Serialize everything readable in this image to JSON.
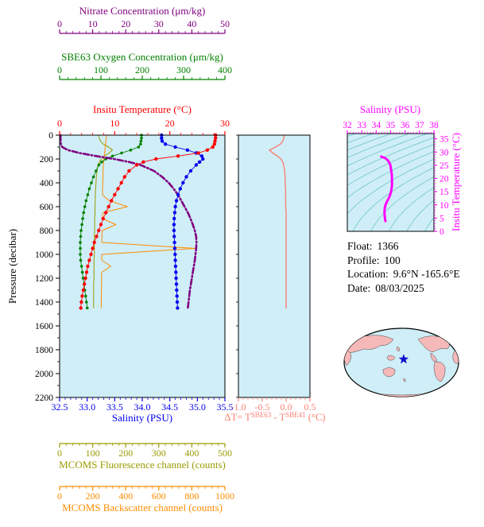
{
  "titles": {
    "nitrate": "Nitrate Concentration (μm/kg)",
    "oxygen": "SBE63 Oxygen Concentration (μm/kg)",
    "temperature": "Insitu Temperature (°C)",
    "pressure": "Pressure (decibar)",
    "salinity": "Salinity (PSU)",
    "fluorescence": "MCOMS Fluorescence channel (counts)",
    "backscatter": "MCOMS Backscatter channel (counts)",
    "dt_prefix": "ΔT= T",
    "dt_sup1": "SBE63",
    "dt_mid": " - T",
    "dt_sup2": "SBE41",
    "dt_suffix": " (°C)",
    "ts_x": "Salinity (PSU)",
    "ts_y": "Insitu Temperature (°C)"
  },
  "info": {
    "lines": [
      {
        "label": "Float:",
        "value": "1366"
      },
      {
        "label": "Profile:",
        "value": "100"
      },
      {
        "label": "Location:",
        "value": "9.6°N -165.6°E"
      },
      {
        "label": "Date:",
        "value": "08/03/2025"
      }
    ]
  },
  "colors": {
    "plot_bg": "#cfeef7",
    "contour": "#5fc0c0",
    "nitrate": "#800080",
    "oxygen": "#008000",
    "temperature": "#ff0000",
    "salinity": "#0000ee",
    "fluorescence": "#9a9a00",
    "backscatter": "#ff8c00",
    "delta_t": "#fa8072",
    "ts": "#ff00ff",
    "pressure": "#000000",
    "marker": "#1111cc",
    "land": "#f5b9b9",
    "ocean": "#cfeef7"
  },
  "chart_data": [
    {
      "id": "profile",
      "type": "line",
      "ylabel": "Pressure (decibar)",
      "ylim": [
        0,
        2200
      ],
      "yticks": [
        0,
        200,
        400,
        600,
        800,
        1000,
        1200,
        1400,
        1600,
        1800,
        2000,
        2200
      ],
      "ytick_labels": [
        "0",
        "200",
        "400",
        "600",
        "800",
        "1000",
        "1200",
        "1400",
        "1600",
        "1800",
        "2000",
        "2200"
      ],
      "y_minor_step": 100,
      "pressure": [
        0,
        25,
        50,
        75,
        100,
        125,
        150,
        175,
        200,
        225,
        250,
        300,
        350,
        400,
        450,
        500,
        550,
        600,
        650,
        700,
        750,
        800,
        850,
        900,
        950,
        1000,
        1050,
        1100,
        1150,
        1200,
        1250,
        1300,
        1350,
        1400,
        1450
      ],
      "axes": [
        {
          "name": "nitrate",
          "label": "Nitrate Concentration (μm/kg)",
          "color": "#800080",
          "lim": [
            0,
            50
          ],
          "ticks": [
            0,
            10,
            20,
            30,
            40,
            50
          ],
          "tick_labels": [
            "0",
            "10",
            "20",
            "30",
            "40",
            "50"
          ],
          "minor": 2,
          "position": "top-detached-1"
        },
        {
          "name": "oxygen",
          "label": "SBE63 Oxygen Concentration (μm/kg)",
          "color": "#008000",
          "lim": [
            0,
            400
          ],
          "ticks": [
            0,
            100,
            200,
            300,
            400
          ],
          "tick_labels": [
            "0",
            "100",
            "200",
            "300",
            "400"
          ],
          "minor": 20,
          "position": "top-detached-2"
        },
        {
          "name": "temperature",
          "label": "Insitu Temperature (°C)",
          "color": "#ff0000",
          "lim": [
            0,
            30
          ],
          "ticks": [
            0,
            10,
            20,
            30
          ],
          "tick_labels": [
            "0",
            "10",
            "20",
            "30"
          ],
          "minor": 2,
          "position": "top-edge"
        },
        {
          "name": "salinity",
          "label": "Salinity (PSU)",
          "color": "#0000ee",
          "lim": [
            32.5,
            35.5
          ],
          "ticks": [
            32.5,
            33,
            33.5,
            34,
            34.5,
            35,
            35.5
          ],
          "tick_labels": [
            "32.5",
            "33.0",
            "33.5",
            "34.0",
            "34.5",
            "35.0",
            "35.5"
          ],
          "minor": 0.1,
          "position": "bottom-edge"
        },
        {
          "name": "fluorescence",
          "label": "MCOMS Fluorescence channel (counts)",
          "color": "#9a9a00",
          "lim": [
            0,
            500
          ],
          "ticks": [
            0,
            100,
            200,
            300,
            400,
            500
          ],
          "tick_labels": [
            "0",
            "100",
            "200",
            "300",
            "400",
            "500"
          ],
          "minor": 20,
          "position": "bottom-detached-1"
        },
        {
          "name": "backscatter",
          "label": "MCOMS Backscatter channel (counts)",
          "color": "#ff8c00",
          "lim": [
            0,
            1000
          ],
          "ticks": [
            0,
            200,
            400,
            600,
            800,
            1000
          ],
          "tick_labels": [
            "0",
            "200",
            "400",
            "600",
            "800",
            "1000"
          ],
          "minor": 40,
          "position": "bottom-detached-2"
        }
      ],
      "series": [
        {
          "name": "fluorescence",
          "axis": "fluorescence",
          "color": "#9a9a00",
          "style": "line",
          "values": [
            118,
            120,
            124,
            132,
            148,
            160,
            150,
            136,
            126,
            120,
            116,
            113,
            111,
            110,
            109,
            108,
            108,
            107,
            107,
            106,
            106,
            106,
            105,
            105,
            105,
            105,
            104,
            104,
            104,
            104,
            103,
            103,
            103,
            103,
            103
          ]
        },
        {
          "name": "backscatter",
          "axis": "backscatter",
          "color": "#ff8c00",
          "style": "line",
          "values": [
            285,
            282,
            280,
            278,
            276,
            274,
            272,
            270,
            268,
            266,
            265,
            263,
            262,
            261,
            260,
            259,
            300,
            410,
            262,
            258,
            340,
            257,
            256,
            256,
            820,
            256,
            255,
            310,
            255,
            254,
            254,
            253,
            253,
            252,
            252
          ]
        },
        {
          "name": "oxygen",
          "axis": "oxygen",
          "color": "#008000",
          "style": "dots",
          "values": [
            198,
            198,
            197,
            196,
            191,
            172,
            150,
            128,
            112,
            102,
            95,
            88,
            82,
            77,
            72,
            68,
            64,
            61,
            58,
            56,
            54,
            52,
            51,
            50,
            50,
            50,
            51,
            53,
            55,
            57,
            59,
            61,
            63,
            65,
            67
          ]
        },
        {
          "name": "nitrate",
          "axis": "nitrate",
          "color": "#800080",
          "style": "dashdot",
          "values": [
            0.3,
            0.3,
            0.3,
            0.4,
            0.8,
            2.5,
            6.0,
            11.0,
            16.5,
            21.0,
            24.5,
            28.5,
            31.0,
            33.0,
            34.5,
            35.8,
            36.8,
            37.8,
            38.8,
            39.6,
            40.3,
            40.9,
            41.3,
            41.4,
            41.3,
            41.1,
            40.9,
            40.6,
            40.3,
            40.0,
            39.7,
            39.4,
            39.2,
            39.0,
            38.8
          ]
        },
        {
          "name": "salinity",
          "axis": "salinity",
          "color": "#0000ee",
          "style": "dots",
          "values": [
            34.35,
            34.35,
            34.36,
            34.42,
            34.6,
            34.82,
            34.98,
            35.08,
            35.1,
            35.04,
            34.98,
            34.88,
            34.8,
            34.74,
            34.69,
            34.65,
            34.62,
            34.6,
            34.59,
            34.58,
            34.575,
            34.575,
            34.58,
            34.585,
            34.59,
            34.595,
            34.6,
            34.605,
            34.61,
            34.615,
            34.62,
            34.625,
            34.63,
            34.635,
            34.64
          ]
        },
        {
          "name": "temperature",
          "axis": "temperature",
          "color": "#ff0000",
          "style": "dots",
          "values": [
            28.3,
            28.3,
            28.2,
            28.1,
            27.8,
            26.8,
            25.2,
            21.5,
            17.5,
            15.2,
            14.0,
            12.6,
            11.8,
            11.2,
            10.6,
            10.0,
            9.4,
            8.9,
            8.4,
            7.9,
            7.5,
            7.1,
            6.7,
            6.3,
            6.0,
            5.7,
            5.4,
            5.1,
            4.9,
            4.7,
            4.5,
            4.3,
            4.1,
            3.95,
            3.85
          ]
        }
      ]
    },
    {
      "id": "delta_t",
      "type": "line",
      "xlabel": "ΔT= T^SBE63 - T^SBE41 (°C)",
      "xlim": [
        -1.0,
        0.5
      ],
      "xticks": [
        -1.0,
        -0.5,
        0.0,
        0.5
      ],
      "xtick_labels": [
        "-1.0",
        "-0.5",
        "0.0",
        "0.5"
      ],
      "x_minor_step": 0.1,
      "ylim": [
        0,
        2200
      ],
      "color": "#fa8072",
      "pressure": [
        0,
        25,
        50,
        75,
        100,
        125,
        150,
        175,
        200,
        225,
        250,
        300,
        350,
        400,
        450,
        500,
        550,
        600,
        650,
        700,
        750,
        800,
        850,
        900,
        950,
        1000,
        1050,
        1100,
        1150,
        1200,
        1250,
        1300,
        1350,
        1400,
        1450
      ],
      "values": [
        -0.04,
        -0.05,
        -0.07,
        -0.12,
        -0.22,
        -0.35,
        -0.28,
        -0.18,
        -0.11,
        -0.07,
        -0.05,
        -0.03,
        -0.02,
        -0.02,
        -0.01,
        -0.01,
        -0.01,
        -0.01,
        0.0,
        0.0,
        0.0,
        0.0,
        0.0,
        0.0,
        0.0,
        0.0,
        0.0,
        0.0,
        0.0,
        0.0,
        0.0,
        0.0,
        0.0,
        0.0,
        0.0
      ]
    },
    {
      "id": "ts",
      "type": "line",
      "xlabel": "Salinity (PSU)",
      "ylabel": "Insitu Temperature (°C)",
      "xlim": [
        32,
        38
      ],
      "xticks": [
        32,
        33,
        34,
        35,
        36,
        37,
        38
      ],
      "xtick_labels": [
        "32",
        "33",
        "34",
        "35",
        "36",
        "37",
        "38"
      ],
      "x_minor_step": 0.2,
      "ylim": [
        0,
        37
      ],
      "yticks": [
        0,
        5,
        10,
        15,
        20,
        25,
        30,
        35
      ],
      "ytick_labels": [
        "0",
        "5",
        "10",
        "15",
        "20",
        "25",
        "30",
        "35"
      ],
      "y_minor_step": 1,
      "color": "#ff00ff",
      "contour_levels": [
        17,
        18,
        19,
        20,
        21,
        22,
        23,
        24,
        25,
        26,
        27,
        28,
        29,
        30
      ],
      "salinity": [
        34.35,
        34.35,
        34.36,
        34.42,
        34.6,
        34.82,
        34.98,
        35.08,
        35.1,
        35.04,
        34.98,
        34.88,
        34.8,
        34.74,
        34.69,
        34.65,
        34.62,
        34.6,
        34.59,
        34.58,
        34.575,
        34.575,
        34.58,
        34.585,
        34.59,
        34.595,
        34.6,
        34.605,
        34.61,
        34.615,
        34.62,
        34.625,
        34.63,
        34.635,
        34.64
      ],
      "temperature": [
        28.3,
        28.3,
        28.2,
        28.1,
        27.8,
        26.8,
        25.2,
        21.5,
        17.5,
        15.2,
        14.0,
        12.6,
        11.8,
        11.2,
        10.6,
        10.0,
        9.4,
        8.9,
        8.4,
        7.9,
        7.5,
        7.1,
        6.7,
        6.3,
        6.0,
        5.7,
        5.4,
        5.1,
        4.9,
        4.7,
        4.5,
        4.3,
        4.1,
        3.95,
        3.85
      ]
    },
    {
      "id": "map",
      "type": "map",
      "marker": {
        "x_frac": 0.52,
        "y_frac": 0.455,
        "color": "#1111cc"
      },
      "land_color": "#f5b9b9",
      "ocean_color": "#cfeef7"
    }
  ]
}
